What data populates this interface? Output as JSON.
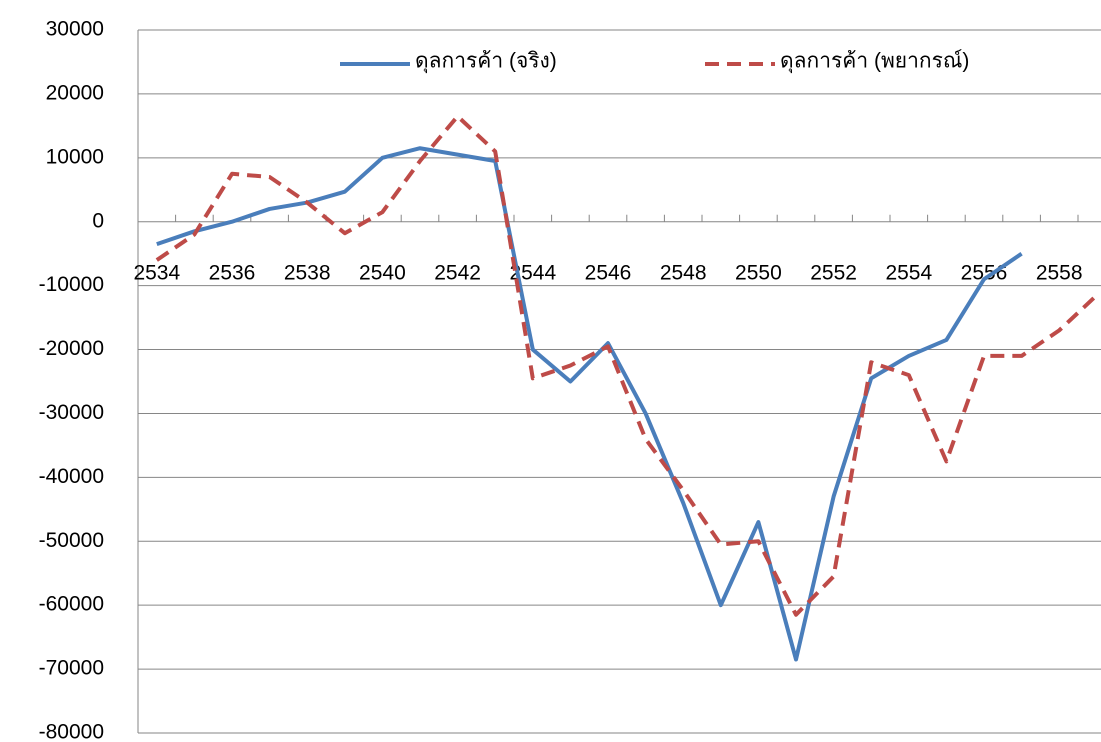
{
  "chart_data": {
    "type": "line",
    "categories": [
      "2534",
      null,
      "2536",
      null,
      "2538",
      null,
      "2540",
      null,
      "2542",
      null,
      "2544",
      null,
      "2546",
      null,
      "2548",
      null,
      "2550",
      null,
      "2552",
      null,
      "2554",
      null,
      "2556",
      null,
      "2558",
      null
    ],
    "series": [
      {
        "name": "ดุลการค้า (จริง)",
        "color": "#4a7ebb",
        "dash": "solid",
        "values": [
          -3500,
          -1500,
          0,
          2000,
          3000,
          4700,
          10000,
          11500,
          10500,
          9500,
          -20000,
          -25000,
          -19000,
          -30000,
          -44000,
          -60000,
          -47000,
          -68500,
          -43000,
          -24500,
          -21000,
          -18500,
          -9000,
          -5000,
          null,
          null
        ]
      },
      {
        "name": "ดุลการค้า (พยากรณ์)",
        "color": "#be4b48",
        "dash": "dashed",
        "values": [
          -6000,
          -2000,
          7500,
          7000,
          3000,
          -1800,
          1500,
          9500,
          16500,
          11000,
          -24500,
          -22500,
          -19500,
          -34000,
          -42000,
          -50500,
          -50000,
          -61500,
          -55500,
          -22000,
          -24000,
          -37500,
          -21000,
          -21000,
          -17000,
          -11500
        ]
      }
    ],
    "ylim": [
      -80000,
      30000
    ],
    "yticks": [
      -80000,
      -70000,
      -60000,
      -50000,
      -40000,
      -30000,
      -20000,
      -10000,
      0,
      10000,
      20000,
      30000
    ],
    "grid": true
  }
}
